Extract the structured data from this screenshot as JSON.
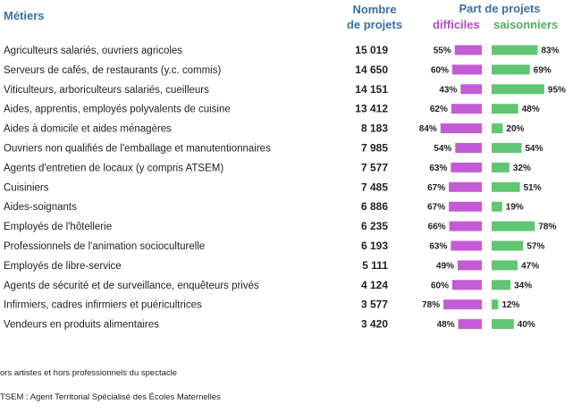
{
  "headers": {
    "metiers": "Métiers",
    "nombre_line1": "Nombre",
    "nombre_line2": "de projets",
    "part": "Part de projets",
    "difficiles": "difficiles",
    "saisonniers": "saisonniers"
  },
  "colors": {
    "difficiles": "#c35bd6",
    "saisonniers": "#61c574",
    "header": "#3b6fa6"
  },
  "chart_data": {
    "type": "table",
    "columns": [
      "Métiers",
      "Nombre de projets",
      "Part de projets difficiles",
      "Part de projets saisonniers"
    ],
    "rows": [
      {
        "metier": "Agriculteurs salariés, ouvriers agricoles",
        "nombre": "15 019",
        "difficiles": 55,
        "saisonniers": 83
      },
      {
        "metier": "Serveurs de cafés, de restaurants (y.c. commis)",
        "nombre": "14 650",
        "difficiles": 60,
        "saisonniers": 69
      },
      {
        "metier": "Viticulteurs, arboriculteurs salariés, cueilleurs",
        "nombre": "14 151",
        "difficiles": 43,
        "saisonniers": 95
      },
      {
        "metier": "Aides, apprentis, employés polyvalents de cuisine",
        "nombre": "13 412",
        "difficiles": 62,
        "saisonniers": 48
      },
      {
        "metier": "Aides à domicile et aides ménagères",
        "nombre": "8 183",
        "difficiles": 84,
        "saisonniers": 20
      },
      {
        "metier": "Ouvriers non qualifiés de l'emballage et manutentionnaires",
        "nombre": "7 985",
        "difficiles": 54,
        "saisonniers": 54
      },
      {
        "metier": "Agents d'entretien de locaux (y compris ATSEM)",
        "nombre": "7 577",
        "difficiles": 63,
        "saisonniers": 32
      },
      {
        "metier": "Cuisiniers",
        "nombre": "7 485",
        "difficiles": 67,
        "saisonniers": 51
      },
      {
        "metier": "Aides-soignants",
        "nombre": "6 886",
        "difficiles": 67,
        "saisonniers": 19
      },
      {
        "metier": "Employés de l'hôtellerie",
        "nombre": "6 235",
        "difficiles": 66,
        "saisonniers": 78
      },
      {
        "metier": "Professionnels de l'animation socioculturelle",
        "nombre": "6 193",
        "difficiles": 63,
        "saisonniers": 57
      },
      {
        "metier": "Employés de libre-service",
        "nombre": "5 111",
        "difficiles": 49,
        "saisonniers": 47
      },
      {
        "metier": "Agents de sécurité et de surveillance, enquêteurs privés",
        "nombre": "4 124",
        "difficiles": 60,
        "saisonniers": 34
      },
      {
        "metier": "Infirmiers, cadres infirmiers et puéricultrices",
        "nombre": "3 577",
        "difficiles": 78,
        "saisonniers": 12
      },
      {
        "metier": "Vendeurs en produits alimentaires",
        "nombre": "3 420",
        "difficiles": 48,
        "saisonniers": 40
      }
    ]
  },
  "footnotes": [
    "ors artistes et hors professionnels du spectacle",
    "TSEM : Agent Territorial Spécialisé des Écoles Maternelles"
  ]
}
